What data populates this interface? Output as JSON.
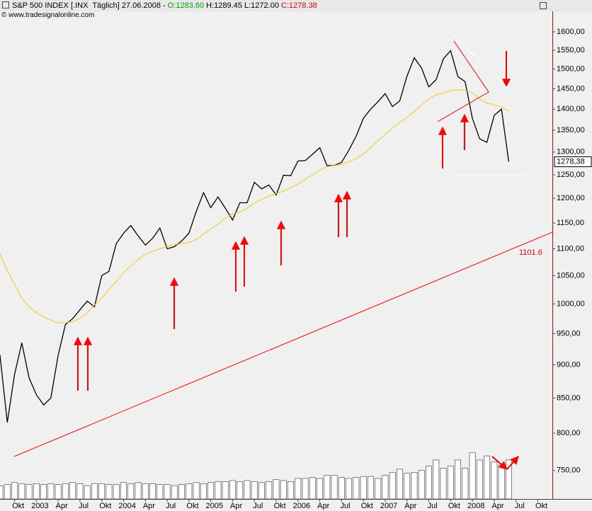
{
  "header": {
    "instrument": "S&P 500 INDEX [.INX  Täglich] 27.06.2008 -",
    "open": "O:1283.60",
    "high": "H:1289.45",
    "low": "L:1272.00",
    "close": "C:1278.38",
    "copyright": "© www.tradesignalonline.com",
    "unit": "$"
  },
  "chart_data": {
    "type": "line",
    "log_scale": true,
    "grid": false,
    "x": [
      "2002-07",
      "2002-08",
      "2002-09",
      "2002-10",
      "2002-11",
      "2002-12",
      "2003-01",
      "2003-02",
      "2003-03",
      "2003-04",
      "2003-05",
      "2003-06",
      "2003-07",
      "2003-08",
      "2003-09",
      "2003-10",
      "2003-11",
      "2003-12",
      "2004-01",
      "2004-02",
      "2004-03",
      "2004-04",
      "2004-05",
      "2004-06",
      "2004-07",
      "2004-08",
      "2004-09",
      "2004-10",
      "2004-11",
      "2004-12",
      "2005-01",
      "2005-02",
      "2005-03",
      "2005-04",
      "2005-05",
      "2005-06",
      "2005-07",
      "2005-08",
      "2005-09",
      "2005-10",
      "2005-11",
      "2005-12",
      "2006-01",
      "2006-02",
      "2006-03",
      "2006-04",
      "2006-05",
      "2006-06",
      "2006-07",
      "2006-08",
      "2006-09",
      "2006-10",
      "2006-11",
      "2006-12",
      "2007-01",
      "2007-02",
      "2007-03",
      "2007-04",
      "2007-05",
      "2007-06",
      "2007-07",
      "2007-08",
      "2007-09",
      "2007-10",
      "2007-11",
      "2007-12",
      "2008-01",
      "2008-02",
      "2008-03",
      "2008-04",
      "2008-05",
      "2008-06"
    ],
    "series": [
      {
        "color": "#000000",
        "values": [
          910,
          915,
          815,
          885,
          935,
          880,
          855,
          840,
          850,
          915,
          965,
          975,
          990,
          1005,
          995,
          1050,
          1058,
          1110,
          1130,
          1145,
          1125,
          1107,
          1120,
          1140,
          1100,
          1104,
          1115,
          1130,
          1173,
          1212,
          1181,
          1203,
          1180,
          1156,
          1191,
          1191,
          1234,
          1220,
          1228,
          1207,
          1249,
          1248,
          1280,
          1281,
          1295,
          1310,
          1270,
          1270,
          1277,
          1304,
          1336,
          1378,
          1400,
          1418,
          1438,
          1406,
          1420,
          1482,
          1530,
          1503,
          1455,
          1473,
          1527,
          1549,
          1481,
          1468,
          1378,
          1330,
          1322,
          1385,
          1400,
          1278.38
        ]
      },
      {
        "color": "#f0c814",
        "values": [
          1120,
          1090,
          1060,
          1035,
          1010,
          995,
          985,
          978,
          972,
          968,
          968,
          970,
          975,
          985,
          998,
          1010,
          1025,
          1040,
          1055,
          1068,
          1080,
          1090,
          1095,
          1100,
          1105,
          1108,
          1110,
          1112,
          1118,
          1128,
          1138,
          1148,
          1160,
          1168,
          1172,
          1180,
          1190,
          1198,
          1205,
          1210,
          1215,
          1222,
          1230,
          1240,
          1250,
          1260,
          1268,
          1270,
          1273,
          1278,
          1285,
          1295,
          1310,
          1325,
          1340,
          1355,
          1368,
          1380,
          1395,
          1410,
          1425,
          1435,
          1440,
          1445,
          1448,
          1445,
          1440,
          1425,
          1415,
          1410,
          1405,
          1395
        ]
      }
    ],
    "volume": {
      "color": "#ffffff",
      "ylim": [
        0,
        10
      ],
      "values": [
        1.4,
        1.3,
        1.4,
        1.6,
        1.5,
        1.4,
        1.5,
        1.4,
        1.5,
        1.4,
        1.5,
        1.6,
        1.5,
        1.3,
        1.5,
        1.5,
        1.4,
        1.4,
        1.6,
        1.5,
        1.6,
        1.5,
        1.5,
        1.4,
        1.4,
        1.3,
        1.4,
        1.5,
        1.6,
        1.5,
        1.6,
        1.7,
        1.7,
        1.8,
        1.7,
        1.8,
        1.7,
        1.6,
        1.7,
        1.9,
        1.8,
        1.7,
        2.0,
        2.0,
        2.1,
        2.0,
        2.3,
        2.3,
        2.1,
        2.0,
        2.1,
        2.2,
        2.2,
        2.0,
        2.3,
        2.6,
        2.9,
        2.5,
        2.6,
        2.8,
        3.2,
        3.8,
        3.0,
        3.2,
        3.8,
        3.0,
        4.5,
        3.8,
        4.2,
        3.6,
        3.3,
        3.8
      ]
    },
    "last_price_label": "1278,38",
    "trendline_label": "1101.6",
    "xlim": [
      "2002-08",
      "2008-12"
    ],
    "xticks": [
      {
        "value": "2002-10",
        "label": "Okt"
      },
      {
        "value": "2003-01",
        "label": "2003"
      },
      {
        "value": "2003-04",
        "label": "Apr"
      },
      {
        "value": "2003-07",
        "label": "Jul"
      },
      {
        "value": "2003-10",
        "label": "Okt"
      },
      {
        "value": "2004-01",
        "label": "2004"
      },
      {
        "value": "2004-04",
        "label": "Apr"
      },
      {
        "value": "2004-07",
        "label": "Jul"
      },
      {
        "value": "2004-10",
        "label": "Okt"
      },
      {
        "value": "2005-01",
        "label": "2005"
      },
      {
        "value": "2005-04",
        "label": "Apr"
      },
      {
        "value": "2005-07",
        "label": "Jul"
      },
      {
        "value": "2005-10",
        "label": "Okt"
      },
      {
        "value": "2006-01",
        "label": "2006"
      },
      {
        "value": "2006-04",
        "label": "Apr"
      },
      {
        "value": "2006-07",
        "label": "Jul"
      },
      {
        "value": "2006-10",
        "label": "Okt"
      },
      {
        "value": "2007-01",
        "label": "2007"
      },
      {
        "value": "2007-04",
        "label": "Apr"
      },
      {
        "value": "2007-07",
        "label": "Jul"
      },
      {
        "value": "2007-10",
        "label": "Okt"
      },
      {
        "value": "2008-01",
        "label": "2008"
      },
      {
        "value": "2008-04",
        "label": "Apr"
      },
      {
        "value": "2008-07",
        "label": "Jul"
      },
      {
        "value": "2008-10",
        "label": "Okt"
      }
    ],
    "ylim": [
      714,
      1674
    ],
    "yticks": [
      {
        "value": 750,
        "label": "750,00"
      },
      {
        "value": 800,
        "label": "800,00"
      },
      {
        "value": 850,
        "label": "850,00"
      },
      {
        "value": 900,
        "label": "900,00"
      },
      {
        "value": 950,
        "label": "950,00"
      },
      {
        "value": 1000,
        "label": "1000,00"
      },
      {
        "value": 1050,
        "label": "1050,00"
      },
      {
        "value": 1100,
        "label": "1100,00"
      },
      {
        "value": 1150,
        "label": "1150,00"
      },
      {
        "value": 1200,
        "label": "1200,00"
      },
      {
        "value": 1250,
        "label": "1250,00"
      },
      {
        "value": 1300,
        "label": "1300,00"
      },
      {
        "value": 1350,
        "label": "1350,00"
      },
      {
        "value": 1400,
        "label": "1400,00"
      },
      {
        "value": 1450,
        "label": "1450,00"
      },
      {
        "value": 1500,
        "label": "1500,00"
      },
      {
        "value": 1550,
        "label": "1550,00"
      },
      {
        "value": 1600,
        "label": "1600,00"
      }
    ]
  }
}
